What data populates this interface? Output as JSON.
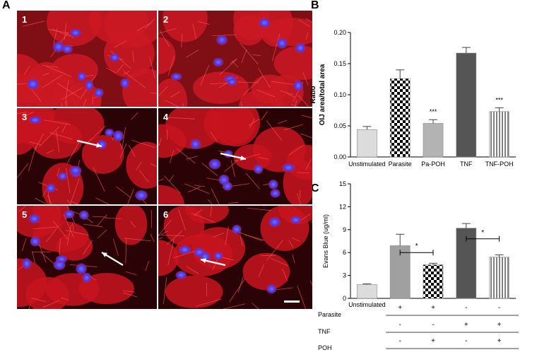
{
  "panels": {
    "a": {
      "letter": "A",
      "tiles": [
        {
          "label": "1",
          "arrow": false
        },
        {
          "label": "2",
          "arrow": false
        },
        {
          "label": "3",
          "arrow": true
        },
        {
          "label": "4",
          "arrow": true
        },
        {
          "label": "5",
          "arrow": true
        },
        {
          "label": "6",
          "arrow": true
        }
      ]
    },
    "b": {
      "letter": "B"
    },
    "c": {
      "letter": "C"
    }
  },
  "chart_data": [
    {
      "type": "bar",
      "panel": "B",
      "ylabel_lines": [
        "Ratio",
        "OIJ area/total area"
      ],
      "ylim": [
        0,
        0.2
      ],
      "yticks": [
        "0.00",
        "0.05",
        "0.10",
        "0.15",
        "0.20"
      ],
      "categories": [
        "Unstimulated",
        "Parasite",
        "Pa-POH",
        "TNF",
        "TNF-POH"
      ],
      "values": [
        0.044,
        0.126,
        0.054,
        0.167,
        0.073
      ],
      "errors": [
        0.005,
        0.014,
        0.006,
        0.009,
        0.006
      ],
      "fills": [
        "#dcdcdc",
        "checker",
        "#b3b3b3",
        "#555555",
        "stripes"
      ],
      "annotations": [
        "",
        "",
        "***",
        "",
        "***"
      ]
    },
    {
      "type": "bar",
      "panel": "C",
      "ylabel": "Evans Blue (ug/ml)",
      "ylim": [
        0,
        15
      ],
      "yticks": [
        "0",
        "3",
        "6",
        "9",
        "12",
        "15"
      ],
      "categories": [
        "Unstimulated",
        "",
        "",
        "",
        ""
      ],
      "values": [
        1.8,
        6.9,
        4.4,
        9.2,
        5.4
      ],
      "errors": [
        0.1,
        1.5,
        0.2,
        0.6,
        0.3
      ],
      "fills": [
        "#dcdcdc",
        "#a0a0a0",
        "checker",
        "#555555",
        "stripes"
      ],
      "significance": [
        {
          "from": 1,
          "to": 2,
          "level": 6.0,
          "label": "*"
        },
        {
          "from": 3,
          "to": 4,
          "level": 7.8,
          "label": "*"
        }
      ],
      "condition_table": [
        {
          "label": "Parasite",
          "marks": [
            "+",
            "+",
            "-",
            "-"
          ]
        },
        {
          "label": "TNF",
          "marks": [
            "-",
            "-",
            "+",
            "+"
          ]
        },
        {
          "label": "POH",
          "marks": [
            "-",
            "+",
            "-",
            "+"
          ]
        }
      ]
    }
  ],
  "scale_bar": {
    "color": "#ffffff"
  }
}
